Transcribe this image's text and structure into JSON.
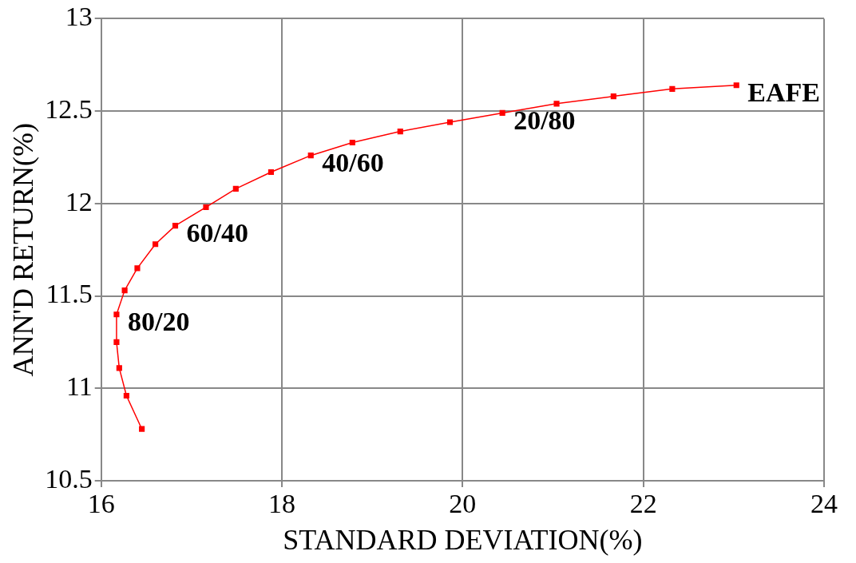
{
  "chart_data": {
    "type": "line",
    "xlabel": "STANDARD DEVIATION(%)",
    "ylabel": "ANN'D RETURN(%)",
    "x": [
      16.45,
      16.28,
      16.2,
      16.17,
      16.17,
      16.26,
      16.4,
      16.6,
      16.82,
      17.16,
      17.49,
      17.88,
      18.32,
      18.78,
      19.31,
      19.86,
      20.44,
      21.04,
      21.67,
      22.32,
      23.03
    ],
    "series": [
      {
        "color": "#ff0000",
        "values": [
          10.78,
          10.96,
          11.11,
          11.25,
          11.4,
          11.53,
          11.65,
          11.78,
          11.88,
          11.98,
          12.08,
          12.17,
          12.26,
          12.33,
          12.39,
          12.44,
          12.49,
          12.54,
          12.58,
          12.62,
          12.64
        ]
      }
    ],
    "xlim": [
      16,
      24
    ],
    "xticks": [
      16,
      18,
      20,
      22,
      24
    ],
    "ylim": [
      10.5,
      13
    ],
    "yticks": [
      10.5,
      11,
      11.5,
      12,
      12.5,
      13
    ],
    "grid": true,
    "legend": false,
    "marker": "square",
    "line_style": "solid",
    "annotations": [
      {
        "text": "80/20",
        "x": 16.17,
        "y": 11.4
      },
      {
        "text": "60/40",
        "x": 16.82,
        "y": 11.88
      },
      {
        "text": "40/60",
        "x": 18.32,
        "y": 12.26
      },
      {
        "text": "20/80",
        "x": 20.44,
        "y": 12.49
      },
      {
        "text": "EAFE",
        "x": 23.03,
        "y": 12.64
      }
    ]
  }
}
